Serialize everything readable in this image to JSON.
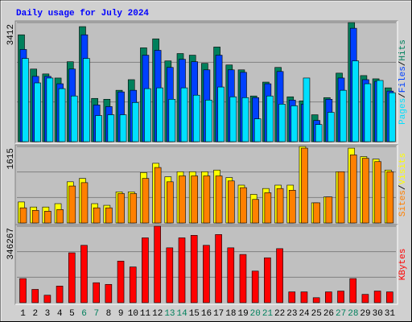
{
  "chart_data": [
    {
      "type": "bar",
      "title": "Daily usage for July 2024",
      "separator": "/",
      "ylim": [
        0,
        3412
      ],
      "yticks": [
        3412
      ],
      "grid": true,
      "series": [
        {
          "name": "Hits",
          "color": "#00805c",
          "values": [
            3061,
            2080,
            1940,
            1823,
            2290,
            3295,
            1239,
            1215,
            1472,
            1776,
            2688,
            2945,
            2314,
            2524,
            2477,
            2244,
            2711,
            2197,
            2057,
            1309,
            1706,
            2127,
            1285,
            1169,
            771,
            1262,
            1963,
            3412,
            1893,
            1800,
            1542
          ]
        },
        {
          "name": "Files",
          "color": "#0040ff",
          "values": [
            2641,
            1870,
            1870,
            1659,
            2080,
            3061,
            1052,
            1005,
            1426,
            1472,
            2477,
            2617,
            2127,
            2360,
            2290,
            2057,
            2477,
            2057,
            1986,
            1262,
            1659,
            2010,
            1192,
            1075,
            608,
            1215,
            1823,
            3248,
            1776,
            1729,
            1449
          ]
        },
        {
          "name": "Pages",
          "color": "#00e0ff",
          "values": [
            2384,
            1683,
            1823,
            1519,
            1309,
            2384,
            748,
            771,
            771,
            1122,
            1519,
            1542,
            1215,
            1542,
            1332,
            1192,
            1566,
            1285,
            1262,
            654,
            1309,
            1075,
            1028,
            1823,
            491,
            841,
            1472,
            2314,
            1659,
            1753,
            1402
          ]
        }
      ]
    },
    {
      "type": "bar",
      "separator": "/",
      "ylim": [
        0,
        1615
      ],
      "yticks": [
        1615
      ],
      "grid": true,
      "series": [
        {
          "name": "Visits",
          "color": "#ffff00",
          "values": [
            444,
            337,
            337,
            408,
            870,
            941,
            408,
            373,
            657,
            657,
            1065,
            1260,
            976,
            1083,
            1083,
            1083,
            1118,
            959,
            799,
            604,
            728,
            799,
            799,
            1615,
            426,
            550,
            1083,
            1580,
            1402,
            1349,
            1118
          ]
        },
        {
          "name": "Sites",
          "color": "#ff8000",
          "values": [
            320,
            266,
            249,
            284,
            781,
            852,
            320,
            320,
            621,
            621,
            941,
            1172,
            870,
            994,
            994,
            994,
            994,
            888,
            746,
            497,
            639,
            728,
            692,
            1580,
            426,
            550,
            1083,
            1438,
            1367,
            1296,
            1083
          ]
        }
      ]
    },
    {
      "type": "bar",
      "ylim": [
        0,
        346267
      ],
      "yticks": [
        346267
      ],
      "grid": true,
      "categories": [
        "1",
        "2",
        "3",
        "4",
        "5",
        "6",
        "7",
        "8",
        "9",
        "10",
        "11",
        "12",
        "13",
        "14",
        "15",
        "16",
        "17",
        "18",
        "19",
        "20",
        "21",
        "22",
        "23",
        "24",
        "25",
        "26",
        "27",
        "28",
        "29",
        "30",
        "31"
      ],
      "category_colors": [
        "#000000",
        "#000000",
        "#000000",
        "#000000",
        "#000000",
        "#00805c",
        "#00805c",
        "#000000",
        "#000000",
        "#000000",
        "#000000",
        "#000000",
        "#00805c",
        "#00805c",
        "#000000",
        "#000000",
        "#000000",
        "#000000",
        "#000000",
        "#00805c",
        "#00805c",
        "#000000",
        "#000000",
        "#000000",
        "#000000",
        "#000000",
        "#00805c",
        "#00805c",
        "#000000",
        "#000000",
        "#000000"
      ],
      "series": [
        {
          "name": "KBytes",
          "color": "#ff0000",
          "values": [
            109156,
            60224,
            33876,
            75280,
            225840,
            259716,
            90336,
            82808,
            188200,
            161852,
            293592,
            346267,
            248424,
            293592,
            304884,
            259716,
            308648,
            248424,
            218312,
            143032,
            203256,
            244660,
            48932,
            48932,
            22584,
            48932,
            52696,
            109156,
            37640,
            52696,
            48932
          ]
        }
      ]
    }
  ]
}
